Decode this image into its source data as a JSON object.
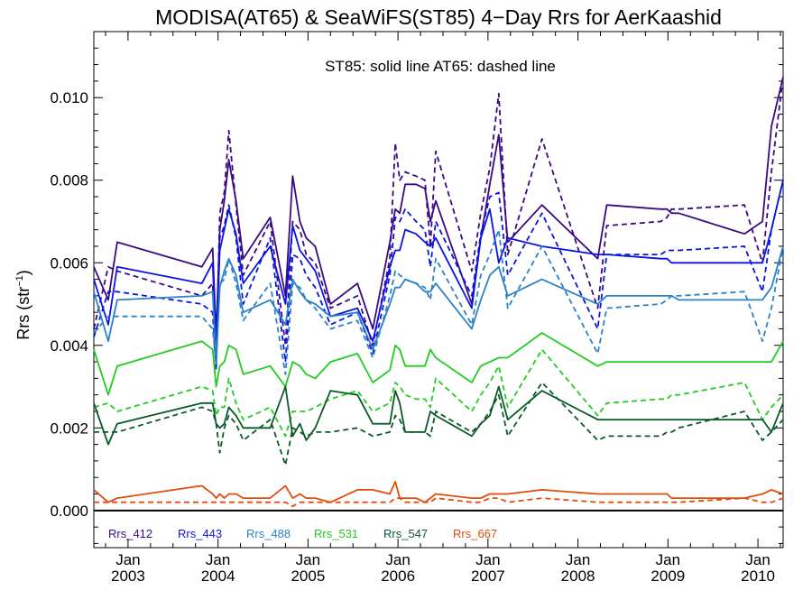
{
  "chart_data": {
    "type": "line",
    "title": "MODISA(AT65) & SeaWiFS(ST85) 4−Day Rrs for AerKaashid",
    "annotation": "ST85: solid line   AT65: dashed line",
    "ylabel": "Rrs (str",
    "ylabel_sup": "−1",
    "ylabel_close": ")",
    "ylim": [
      -0.0009,
      0.0116
    ],
    "xlim": [
      2002.62,
      2010.28
    ],
    "yticks": [
      0.0,
      0.002,
      0.004,
      0.006,
      0.008,
      0.01
    ],
    "ytick_labels": [
      "0.000",
      "0.002",
      "0.004",
      "0.006",
      "0.008",
      "0.010"
    ],
    "xticks": [
      2003.0,
      2004.0,
      2005.0,
      2006.0,
      2007.0,
      2008.0,
      2009.0,
      2010.0
    ],
    "xtick_month": "Jan",
    "xtick_years": [
      "2003",
      "2004",
      "2005",
      "2006",
      "2007",
      "2008",
      "2009",
      "2010"
    ],
    "legend_placement": "bottom-left",
    "x": [
      2002.62,
      2002.78,
      2002.88,
      2003.82,
      2003.94,
      2003.98,
      2004.02,
      2004.07,
      2004.12,
      2004.2,
      2004.28,
      2004.58,
      2004.75,
      2004.83,
      2004.91,
      2004.98,
      2005.08,
      2005.25,
      2005.55,
      2005.72,
      2005.91,
      2005.97,
      2006.02,
      2006.08,
      2006.2,
      2006.3,
      2006.36,
      2006.42,
      2006.82,
      2006.92,
      2007.02,
      2007.12,
      2007.22,
      2007.6,
      2008.22,
      2008.32,
      2008.92,
      2008.99,
      2009.04,
      2009.12,
      2009.85,
      2010.05,
      2010.15,
      2010.28
    ],
    "series": [
      {
        "name": "Rrs_412",
        "color": "#3b0a82",
        "solid": [
          0.0059,
          0.0051,
          0.0065,
          0.0059,
          0.00635,
          0.0042,
          0.0068,
          0.0075,
          0.0085,
          0.0075,
          0.0061,
          0.0071,
          0.0052,
          0.0081,
          0.007,
          0.0066,
          0.0064,
          0.005,
          0.0055,
          0.0044,
          0.0065,
          0.0073,
          0.0072,
          0.0079,
          0.0079,
          0.0078,
          0.007,
          0.0075,
          0.005,
          0.0066,
          0.0079,
          0.0091,
          0.0065,
          0.0074,
          0.0061,
          0.0074,
          0.0073,
          0.0073,
          0.0072,
          0.0072,
          0.0067,
          0.007,
          0.0093,
          0.0105
        ],
        "dashed": [
          0.0044,
          0.0059,
          0.0058,
          0.0052,
          0.0055,
          0.0036,
          0.0072,
          0.0077,
          0.0092,
          0.0074,
          0.0057,
          0.007,
          0.004,
          0.007,
          0.0068,
          0.0062,
          0.006,
          0.0049,
          0.0052,
          0.004,
          0.0061,
          0.0089,
          0.008,
          0.0082,
          0.0081,
          0.008,
          0.0064,
          0.0087,
          0.0058,
          0.0072,
          0.0083,
          0.0101,
          0.0062,
          0.009,
          0.0049,
          0.0069,
          0.007,
          0.0071,
          0.0073,
          0.0073,
          0.0074,
          0.006,
          0.0082,
          0.0105
        ]
      },
      {
        "name": "Rrs_443",
        "color": "#0a14e0",
        "solid": [
          0.0056,
          0.0045,
          0.0059,
          0.0055,
          0.006,
          0.0039,
          0.0063,
          0.0068,
          0.0073,
          0.0067,
          0.0055,
          0.0064,
          0.005,
          0.0069,
          0.0063,
          0.0061,
          0.0058,
          0.0047,
          0.0049,
          0.0041,
          0.0059,
          0.0063,
          0.0063,
          0.0068,
          0.0067,
          0.0065,
          0.0064,
          0.0066,
          0.0049,
          0.0066,
          0.0073,
          0.006,
          0.0066,
          0.0064,
          0.0062,
          0.0062,
          0.0061,
          0.0061,
          0.006,
          0.006,
          0.006,
          0.006,
          0.0068,
          0.008
        ],
        "dashed": [
          0.0042,
          0.0053,
          0.0053,
          0.005,
          0.0048,
          0.0034,
          0.0066,
          0.0069,
          0.0074,
          0.0066,
          0.005,
          0.0066,
          0.0036,
          0.0062,
          0.0061,
          0.0057,
          0.0054,
          0.0045,
          0.0048,
          0.0038,
          0.0057,
          0.0071,
          0.007,
          0.0073,
          0.007,
          0.0068,
          0.0059,
          0.007,
          0.0052,
          0.0067,
          0.0076,
          0.0077,
          0.0057,
          0.0072,
          0.0044,
          0.0062,
          0.0062,
          0.0063,
          0.0063,
          0.0063,
          0.0064,
          0.0053,
          0.0068,
          0.008
        ]
      },
      {
        "name": "Rrs_488",
        "color": "#2b82c8",
        "solid": [
          0.0053,
          0.0041,
          0.0051,
          0.0052,
          0.0053,
          0.0036,
          0.0054,
          0.0058,
          0.0061,
          0.0057,
          0.0048,
          0.0051,
          0.0045,
          0.0056,
          0.0053,
          0.0051,
          0.005,
          0.0047,
          0.0048,
          0.0039,
          0.005,
          0.0054,
          0.0054,
          0.0056,
          0.0055,
          0.0053,
          0.0053,
          0.0055,
          0.0044,
          0.0051,
          0.0057,
          0.0059,
          0.0052,
          0.0056,
          0.005,
          0.0052,
          0.0052,
          0.0052,
          0.0052,
          0.0051,
          0.0051,
          0.0051,
          0.0054,
          0.0064
        ],
        "dashed": [
          0.0043,
          0.0047,
          0.0047,
          0.0047,
          0.0044,
          0.0035,
          0.0055,
          0.0056,
          0.0061,
          0.0055,
          0.0046,
          0.0055,
          0.0033,
          0.0055,
          0.0054,
          0.0051,
          0.0049,
          0.0044,
          0.0046,
          0.0037,
          0.0052,
          0.0058,
          0.0057,
          0.0056,
          0.0055,
          0.0054,
          0.0051,
          0.0061,
          0.0045,
          0.0057,
          0.0062,
          0.0068,
          0.0049,
          0.0064,
          0.0038,
          0.0049,
          0.005,
          0.0051,
          0.0052,
          0.0052,
          0.0053,
          0.0041,
          0.0049,
          0.0064
        ]
      },
      {
        "name": "Rrs_531",
        "color": "#22cc22",
        "solid": [
          0.0039,
          0.0028,
          0.0035,
          0.0041,
          0.0039,
          0.003,
          0.0035,
          0.0036,
          0.004,
          0.0039,
          0.0033,
          0.0035,
          0.003,
          0.0036,
          0.0035,
          0.0033,
          0.0032,
          0.0036,
          0.0038,
          0.0031,
          0.0034,
          0.004,
          0.0039,
          0.0035,
          0.0035,
          0.0035,
          0.0039,
          0.0037,
          0.0031,
          0.0035,
          0.0036,
          0.0037,
          0.0037,
          0.0043,
          0.0035,
          0.0036,
          0.0036,
          0.0036,
          0.0036,
          0.0036,
          0.0036,
          0.0036,
          0.0036,
          0.0041
        ],
        "dashed": [
          0.0025,
          0.0026,
          0.0024,
          0.003,
          0.0029,
          0.0023,
          0.0025,
          0.0025,
          0.0032,
          0.0026,
          0.0022,
          0.0025,
          0.0018,
          0.0024,
          0.0024,
          0.0024,
          0.0025,
          0.0027,
          0.0029,
          0.0024,
          0.0026,
          0.0031,
          0.003,
          0.0028,
          0.0027,
          0.0027,
          0.0025,
          0.0032,
          0.0024,
          0.0028,
          0.0031,
          0.0035,
          0.0025,
          0.0039,
          0.0023,
          0.0026,
          0.0027,
          0.0027,
          0.0028,
          0.0028,
          0.0031,
          0.0022,
          0.0025,
          0.0028
        ]
      },
      {
        "name": "Rrs_547",
        "color": "#0a5a28",
        "solid": [
          0.0026,
          0.0016,
          0.0021,
          0.0026,
          0.0026,
          0.0021,
          0.002,
          0.0021,
          0.0025,
          0.0023,
          0.002,
          0.002,
          0.003,
          0.0018,
          0.0021,
          0.0017,
          0.002,
          0.0029,
          0.0028,
          0.0021,
          0.0021,
          0.0029,
          0.0026,
          0.0019,
          0.0019,
          0.0019,
          0.0024,
          0.0023,
          0.0018,
          0.0021,
          0.0023,
          0.003,
          0.0022,
          0.0029,
          0.0022,
          0.0022,
          0.0022,
          0.0022,
          0.0022,
          0.0022,
          0.0022,
          0.0022,
          0.0019,
          0.0026
        ],
        "dashed": [
          0.0019,
          0.0019,
          0.0019,
          0.0025,
          0.0024,
          0.0021,
          0.0014,
          0.002,
          0.0023,
          0.0021,
          0.0017,
          0.0022,
          0.0011,
          0.002,
          0.0019,
          0.0018,
          0.0019,
          0.0019,
          0.002,
          0.0018,
          0.0019,
          0.0023,
          0.0022,
          0.0019,
          0.0019,
          0.0019,
          0.0018,
          0.0024,
          0.0019,
          0.0021,
          0.0024,
          0.0028,
          0.0018,
          0.0031,
          0.0017,
          0.0018,
          0.0018,
          0.0019,
          0.0019,
          0.002,
          0.0024,
          0.0017,
          0.0019,
          0.0022
        ]
      },
      {
        "name": "Rrs_667",
        "color": "#e34c0a",
        "solid": [
          0.0005,
          0.0002,
          0.0003,
          0.0006,
          0.0004,
          0.0003,
          0.0004,
          0.0003,
          0.0004,
          0.0004,
          0.0003,
          0.0003,
          0.0006,
          0.0003,
          0.0004,
          0.0003,
          0.0003,
          0.0002,
          0.0005,
          0.0005,
          0.0004,
          0.0007,
          0.0003,
          0.0003,
          0.0003,
          0.0002,
          0.0003,
          0.0004,
          0.0003,
          0.0003,
          0.0004,
          0.0004,
          0.0004,
          0.0005,
          0.0004,
          0.0004,
          0.0004,
          0.0004,
          0.0003,
          0.0003,
          0.0003,
          0.0004,
          0.0005,
          0.0004
        ],
        "dashed": [
          0.0002,
          0.0002,
          0.0002,
          0.0002,
          0.0002,
          0.0002,
          0.0002,
          0.0002,
          0.0002,
          0.0002,
          0.0002,
          0.0002,
          0.0002,
          0.0001,
          0.0002,
          0.0002,
          0.0002,
          0.0002,
          0.0002,
          0.0002,
          0.0002,
          0.0003,
          0.0003,
          0.0002,
          0.0002,
          0.0002,
          0.0002,
          0.0003,
          0.0002,
          0.0002,
          0.0003,
          0.0003,
          0.0002,
          0.0003,
          0.0002,
          0.0002,
          0.0002,
          0.0002,
          0.0002,
          0.0002,
          0.0003,
          0.0002,
          0.0002,
          0.0003
        ]
      }
    ]
  }
}
